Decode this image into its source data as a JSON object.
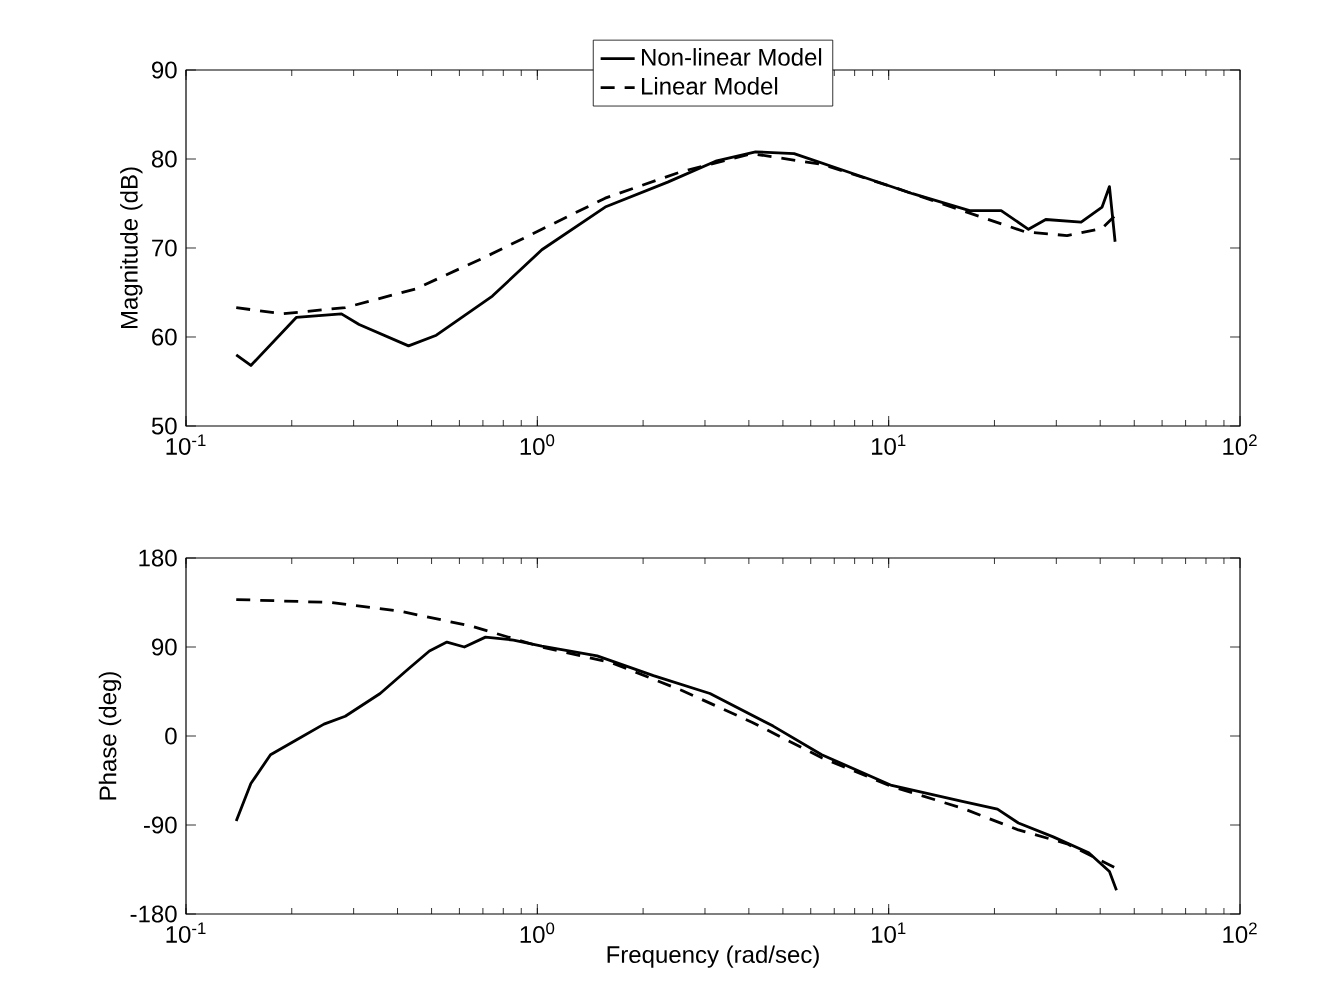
{
  "chart_data": [
    {
      "type": "line",
      "ylabel": "Magnitude (dB)",
      "xlim": [
        0.1,
        100
      ],
      "ylim": [
        50,
        90
      ],
      "log": "x",
      "grid": false,
      "legend": "top",
      "xticks": [
        {
          "value": 0.1,
          "label": "10$^{-1}$"
        },
        {
          "value": 1,
          "label": "10$^{0}$"
        },
        {
          "value": 10,
          "label": "10$^{1}$"
        },
        {
          "value": 100,
          "label": "10$^{2}$"
        }
      ],
      "yticks": [
        50,
        60,
        70,
        80,
        90
      ],
      "series": [
        {
          "name": "Non-linear Model",
          "color": "#000000",
          "line_style": "solid",
          "x": [
            0.139,
            0.153,
            0.206,
            0.277,
            0.311,
            0.43,
            0.516,
            0.745,
            1.03,
            1.56,
            2.35,
            3.24,
            4.18,
            5.38,
            8.13,
            11.7,
            17.0,
            20.9,
            25.0,
            28.0,
            35.3,
            40.5,
            42.5,
            44.1
          ],
          "values": [
            58.0,
            56.8,
            62.2,
            62.6,
            61.4,
            59.0,
            60.2,
            64.6,
            69.8,
            74.6,
            77.4,
            79.8,
            80.8,
            80.6,
            78.2,
            76.1,
            74.2,
            74.2,
            72.1,
            73.2,
            72.9,
            74.6,
            76.9,
            70.7
          ]
        },
        {
          "name": "Linear Model",
          "color": "#000000",
          "line_style": "dashed",
          "x": [
            0.139,
            0.188,
            0.284,
            0.45,
            0.712,
            1.03,
            1.56,
            2.58,
            4.08,
            6.45,
            10.2,
            16.2,
            24.5,
            32.2,
            40.5,
            44.5
          ],
          "values": [
            63.3,
            62.6,
            63.3,
            65.4,
            69.0,
            72.1,
            75.6,
            78.6,
            80.6,
            79.4,
            76.9,
            74.2,
            71.8,
            71.4,
            72.2,
            73.8
          ]
        }
      ]
    },
    {
      "type": "line",
      "xlabel": "Frequency (rad/sec)",
      "ylabel": "Phase (deg)",
      "xlim": [
        0.1,
        100
      ],
      "ylim": [
        -180,
        180
      ],
      "log": "x",
      "grid": false,
      "xticks": [
        {
          "value": 0.1,
          "label": "10$^{-1}$"
        },
        {
          "value": 1,
          "label": "10$^{0}$"
        },
        {
          "value": 10,
          "label": "10$^{1}$"
        },
        {
          "value": 100,
          "label": "10$^{2}$"
        }
      ],
      "yticks": [
        -180,
        -90,
        0,
        90,
        180
      ],
      "series": [
        {
          "color": "#000000",
          "line_style": "solid",
          "x": [
            0.139,
            0.153,
            0.174,
            0.206,
            0.247,
            0.284,
            0.357,
            0.43,
            0.493,
            0.553,
            0.62,
            0.712,
            0.855,
            1.03,
            1.48,
            2.14,
            3.1,
            4.69,
            6.45,
            10.2,
            16.2,
            20.4,
            23.4,
            29.4,
            37.1,
            42.5,
            44.5
          ],
          "values": [
            -86,
            -48,
            -19,
            -4,
            12,
            20,
            43,
            68,
            86,
            95,
            90,
            100,
            97,
            91,
            81,
            61,
            43,
            10,
            -19,
            -50,
            -66,
            -74,
            -88,
            -102,
            -118,
            -137,
            -156
          ]
        },
        {
          "color": "#000000",
          "line_style": "dashed",
          "x": [
            0.139,
            0.259,
            0.41,
            0.65,
            1.03,
            1.63,
            2.58,
            4.08,
            6.45,
            10.2,
            16.2,
            23.4,
            32.2,
            44.5
          ],
          "values": [
            138,
            135,
            126,
            111,
            90,
            74,
            46,
            14,
            -22,
            -51,
            -73,
            -95,
            -109,
            -134
          ]
        }
      ]
    }
  ]
}
